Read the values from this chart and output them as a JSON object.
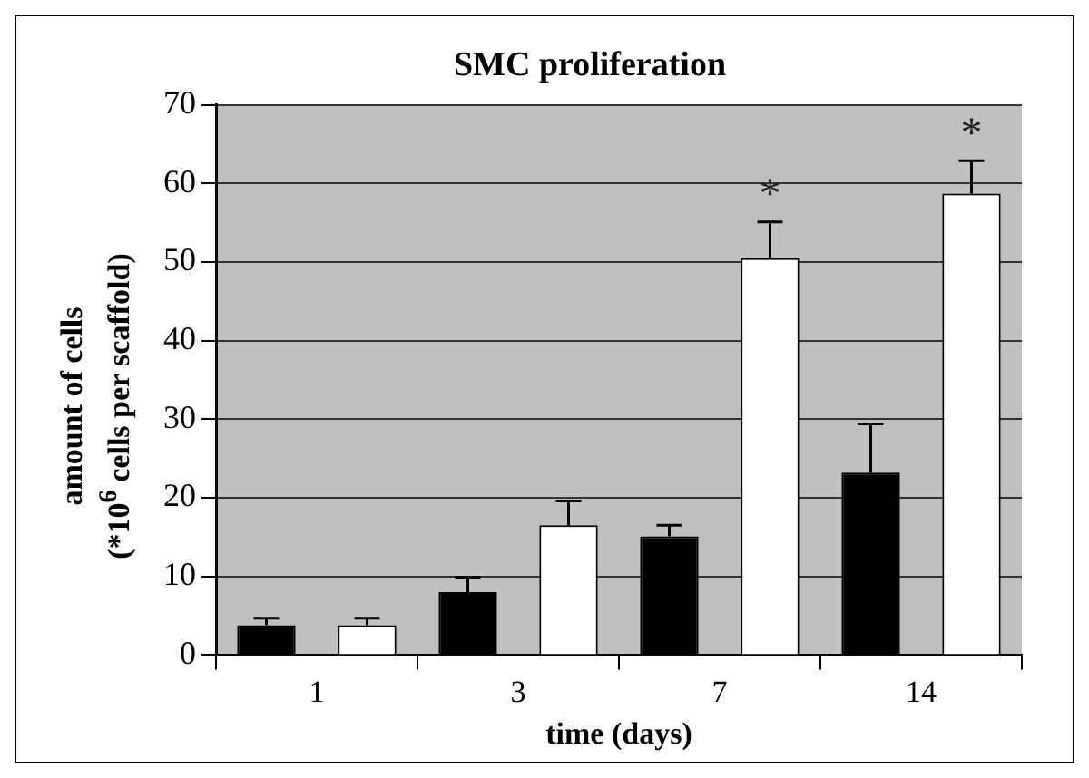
{
  "chart_data": {
    "type": "bar",
    "title": "SMC proliferation",
    "xlabel": "time (days)",
    "ylabel": "amount of cells\n(*10$^{6}$ cells per scaffold)",
    "categories": [
      "1",
      "3",
      "7",
      "14"
    ],
    "series": [
      {
        "color": "#000000",
        "values": [
          3.8,
          8.0,
          15.1,
          23.2
        ],
        "errors": [
          [
            3.8,
            4.7
          ],
          [
            8.0,
            9.9
          ],
          [
            15.1,
            16.5
          ],
          [
            23.2,
            29.4
          ]
        ]
      },
      {
        "color": "#ffffff",
        "values": [
          3.8,
          16.5,
          50.5,
          58.7
        ],
        "errors": [
          [
            3.8,
            4.7
          ],
          [
            16.5,
            19.6
          ],
          [
            50.5,
            55.1
          ],
          [
            58.7,
            62.9
          ]
        ]
      }
    ],
    "ylim": [
      0,
      70
    ],
    "yticks": [
      0,
      10,
      20,
      30,
      40,
      50,
      60,
      70
    ],
    "grid": "y",
    "legend": false,
    "annotations": [
      "*",
      "*"
    ]
  }
}
